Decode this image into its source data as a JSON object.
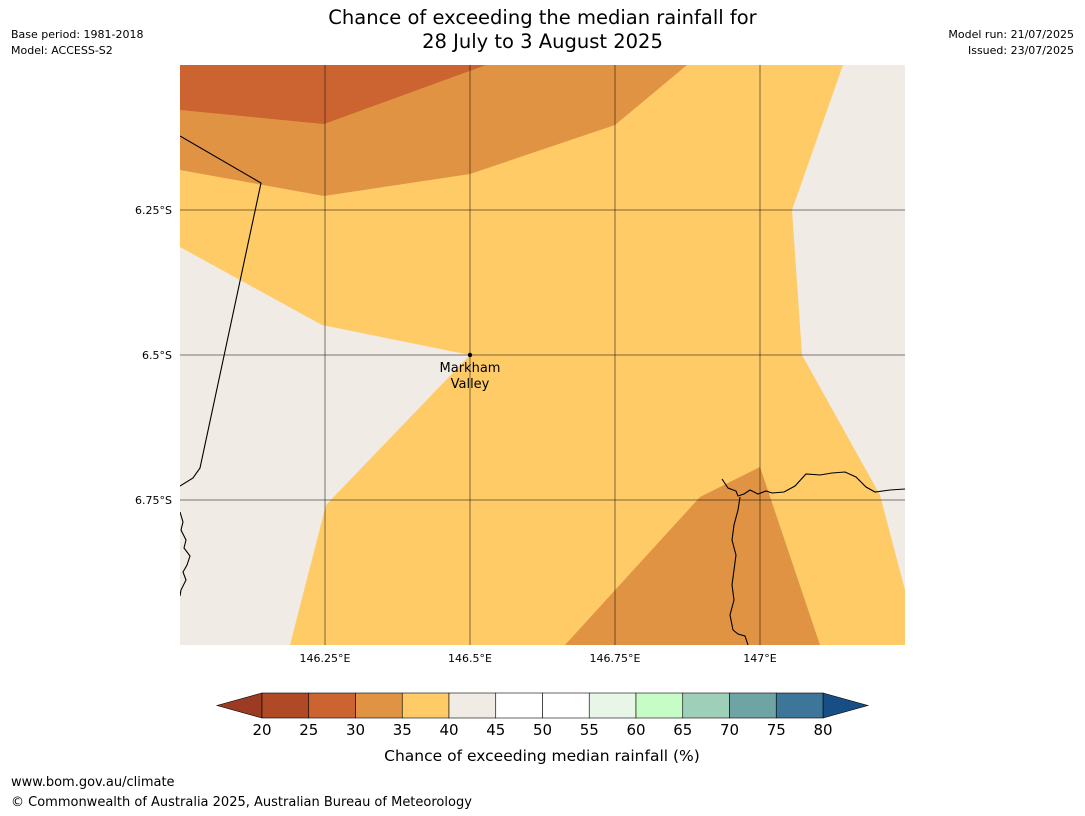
{
  "header": {
    "title_line1": "Chance of exceeding the median rainfall for",
    "title_line2": "28 July to 3 August 2025",
    "base_period": "Base period: 1981-2018",
    "model": "Model: ACCESS-S2",
    "model_run": "Model run: 21/07/2025",
    "issued": "Issued: 23/07/2025"
  },
  "map": {
    "lat_labels": [
      "6.25°S",
      "6.5°S",
      "6.75°S"
    ],
    "lon_labels": [
      "146.25°E",
      "146.5°E",
      "146.75°E",
      "147°E"
    ],
    "place_name_line1": "Markham",
    "place_name_line2": "Valley"
  },
  "colorbar": {
    "ticks": [
      "20",
      "25",
      "30",
      "35",
      "40",
      "45",
      "50",
      "55",
      "60",
      "65",
      "70",
      "75",
      "80"
    ],
    "colors": {
      "under20": "#9c3b24",
      "20-25": "#b04a26",
      "25-30": "#cb6430",
      "30-35": "#e09443",
      "35-40": "#fecb67",
      "40-45": "#f0ebe5",
      "45-50": "#ffffff",
      "50-55": "#ffffff",
      "55-60": "#e7f6e7",
      "60-65": "#c6fdc6",
      "65-70": "#9ecfb8",
      "70-75": "#6ea4a4",
      "75-80": "#3d7698",
      "over80": "#174f85"
    },
    "label": "Chance of exceeding median rainfall (%)"
  },
  "footer": {
    "url": "www.bom.gov.au/climate",
    "copyright": "© Commonwealth of Australia 2025, Australian Bureau of Meteorology"
  }
}
